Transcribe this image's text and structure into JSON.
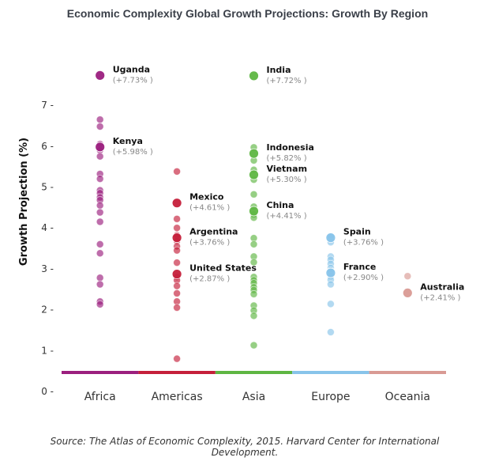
{
  "chart_data": {
    "type": "scatter",
    "title": "Economic Complexity Global Growth Projections: Growth By Region",
    "xlabel": "",
    "ylabel": "Growth Projection (%)",
    "ylim": [
      0,
      7.8
    ],
    "yticks": [
      0,
      1,
      2,
      3,
      4,
      5,
      6,
      7
    ],
    "grid": false,
    "legend": "none",
    "source": "Source: The Atlas of Economic Complexity, 2015. Harvard Center for International Development.",
    "categories": [
      "Africa",
      "Americas",
      "Asia",
      "Europe",
      "Oceania"
    ],
    "series": [
      {
        "name": "Africa",
        "color": "#9b1f7e",
        "values": [
          7.73,
          6.65,
          6.48,
          6.05,
          5.98,
          5.9,
          5.75,
          5.32,
          5.2,
          4.92,
          4.85,
          4.75,
          4.68,
          4.55,
          4.38,
          4.15,
          3.6,
          3.38,
          2.78,
          2.62,
          2.2,
          2.13
        ],
        "highlight": [
          {
            "label": "Uganda",
            "value": 7.73,
            "text": "(+7.73% )"
          },
          {
            "label": "Kenya",
            "value": 5.98,
            "text": "(+5.98% )"
          }
        ]
      },
      {
        "name": "Americas",
        "color": "#c51f3a",
        "values": [
          5.38,
          4.61,
          4.22,
          4.0,
          3.82,
          3.76,
          3.68,
          3.55,
          3.45,
          3.15,
          2.87,
          2.8,
          2.72,
          2.58,
          2.4,
          2.2,
          2.05,
          0.8
        ],
        "highlight": [
          {
            "label": "Mexico",
            "value": 4.61,
            "text": "(+4.61% )"
          },
          {
            "label": "Argentina",
            "value": 3.76,
            "text": "(+3.76% )"
          },
          {
            "label": "United States",
            "value": 2.87,
            "text": "(+2.87% )"
          }
        ]
      },
      {
        "name": "Asia",
        "color": "#5eb642",
        "values": [
          7.72,
          5.97,
          5.82,
          5.65,
          5.42,
          5.3,
          5.18,
          4.82,
          4.52,
          4.41,
          4.33,
          4.25,
          3.75,
          3.6,
          3.3,
          3.16,
          2.8,
          2.72,
          2.65,
          2.55,
          2.48,
          2.38,
          2.1,
          1.98,
          1.85,
          1.13
        ],
        "highlight": [
          {
            "label": "India",
            "value": 7.72,
            "text": "(+7.72% )"
          },
          {
            "label": "Indonesia",
            "value": 5.82,
            "text": "(+5.82% )"
          },
          {
            "label": "Vietnam",
            "value": 5.3,
            "text": "(+5.30% )"
          },
          {
            "label": "China",
            "value": 4.41,
            "text": "(+4.41% )"
          }
        ]
      },
      {
        "name": "Europe",
        "color": "#88c4ea",
        "values": [
          3.8,
          3.76,
          3.65,
          3.3,
          3.22,
          3.12,
          3.02,
          2.96,
          2.9,
          2.82,
          2.73,
          2.62,
          2.14,
          1.45
        ],
        "highlight": [
          {
            "label": "Spain",
            "value": 3.76,
            "text": "(+3.76% )"
          },
          {
            "label": "France",
            "value": 2.9,
            "text": "(+2.90% )"
          }
        ]
      },
      {
        "name": "Oceania",
        "color": "#d99a94",
        "values": [
          2.82,
          2.41
        ],
        "highlight": [
          {
            "label": "Australia",
            "value": 2.41,
            "text": "(+2.41% )"
          }
        ]
      }
    ]
  }
}
